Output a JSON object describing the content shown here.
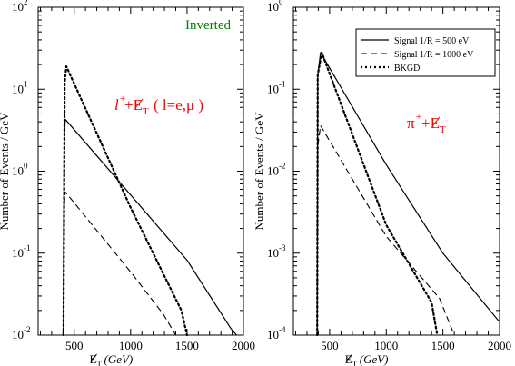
{
  "chart_data": [
    {
      "type": "line",
      "yscale": "log",
      "xlim": [
        180,
        2000
      ],
      "ylim": [
        0.01,
        100
      ],
      "xticks": [
        500,
        1000,
        1500,
        2000
      ],
      "ylabel": "Number of Events / GeV",
      "xlabel_symbol": "E",
      "xlabel_sub": "T",
      "xlabel_unit": "(GeV)",
      "annotations": {
        "inverted": "Inverted",
        "channel": "l",
        "channel_sup": "+",
        "channel_rest": "+E",
        "channel_sub": "T",
        "paren": "( l=e,μ )"
      },
      "series": [
        {
          "style": "solid",
          "x": [
            405,
            410,
            420,
            1500,
            1890,
            1940
          ],
          "y": [
            0.01,
            2.5,
            4.3,
            0.082,
            0.012,
            0.01
          ]
        },
        {
          "style": "dashed",
          "x": [
            405,
            410,
            420,
            1000,
            1290,
            1400
          ],
          "y": [
            0.01,
            0.35,
            0.56,
            0.059,
            0.018,
            0.01
          ]
        },
        {
          "style": "dotted",
          "x": [
            405,
            415,
            430,
            1000,
            1450,
            1500
          ],
          "y": [
            0.01,
            12,
            19,
            0.36,
            0.02,
            0.01
          ]
        }
      ]
    },
    {
      "type": "line",
      "yscale": "log",
      "xlim": [
        180,
        2000
      ],
      "ylim": [
        0.0001,
        1
      ],
      "xticks": [
        500,
        1000,
        1500,
        2000
      ],
      "ylabel": "Number of Events / GeV",
      "xlabel_symbol": "E",
      "xlabel_sub": "T",
      "xlabel_unit": "(GeV)",
      "annotations": {
        "channel": "π",
        "channel_sup": "+",
        "channel_rest": "+E",
        "channel_sub": "T"
      },
      "legend": {
        "position": "top-right",
        "entries": [
          {
            "style": "solid",
            "label": "Signal 1/R = 500 eV"
          },
          {
            "style": "dashed",
            "label": "Signal 1/R = 1000 eV"
          },
          {
            "style": "dotted",
            "label": "BKGD"
          }
        ]
      },
      "series": [
        {
          "name": "Signal 1/R = 500 eV",
          "style": "solid",
          "x": [
            390,
            395,
            420,
            1000,
            1500,
            1990
          ],
          "y": [
            0.0001,
            0.15,
            0.28,
            0.012,
            0.001,
            0.00015
          ]
        },
        {
          "name": "Signal 1/R = 1000 eV",
          "style": "dashed",
          "x": [
            390,
            395,
            420,
            1000,
            1470,
            1600
          ],
          "y": [
            0.0001,
            0.02,
            0.036,
            0.0016,
            0.00028,
            0.0001
          ]
        },
        {
          "name": "BKGD",
          "style": "dotted",
          "x": [
            390,
            395,
            430,
            1000,
            1400,
            1450
          ],
          "y": [
            0.0001,
            0.15,
            0.28,
            0.0022,
            0.00025,
            0.0001
          ]
        }
      ]
    }
  ]
}
